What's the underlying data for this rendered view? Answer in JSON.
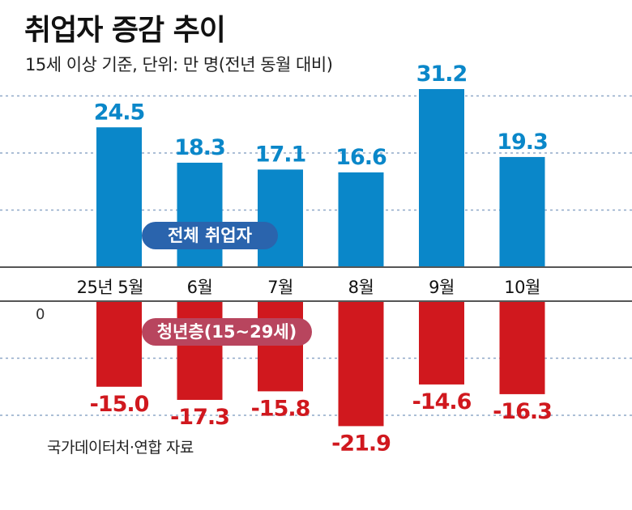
{
  "header": {
    "title": "취업자 증감 추이",
    "subtitle": "15세 이상 기준, 단위: 만 명(전년 동월 대비)"
  },
  "source": "국가데이터처·연합 자료",
  "colors": {
    "total": "#0a87c9",
    "youth": "#d0181e",
    "total_pill": "#2a64ad",
    "youth_pill": "#b8455e"
  },
  "chart_data": [
    {
      "type": "bar",
      "title": "전체 취업자",
      "categories": [
        "25년 5월",
        "6월",
        "7월",
        "8월",
        "9월",
        "10월"
      ],
      "values": [
        24.5,
        18.3,
        17.1,
        16.6,
        31.2,
        19.3
      ],
      "value_labels": [
        "24.5",
        "18.3",
        "17.1",
        "16.6",
        "31.2",
        "19.3"
      ],
      "ylim": [
        0,
        30
      ],
      "grid": true,
      "gridlines": [
        10,
        20,
        30
      ],
      "unit": "만 명"
    },
    {
      "type": "bar",
      "title": "청년층(15~29세)",
      "categories": [
        "25년 5월",
        "6월",
        "7월",
        "8월",
        "9월",
        "10월"
      ],
      "values": [
        -15.0,
        -17.3,
        -15.8,
        -21.9,
        -14.6,
        -16.3
      ],
      "value_labels": [
        "-15.0",
        "-17.3",
        "-15.8",
        "-21.9",
        "-14.6",
        "-16.3"
      ],
      "zero_label": "0",
      "ylim": [
        -20,
        0
      ],
      "grid": true,
      "gridlines": [
        -10,
        -20
      ],
      "unit": "만 명"
    }
  ]
}
